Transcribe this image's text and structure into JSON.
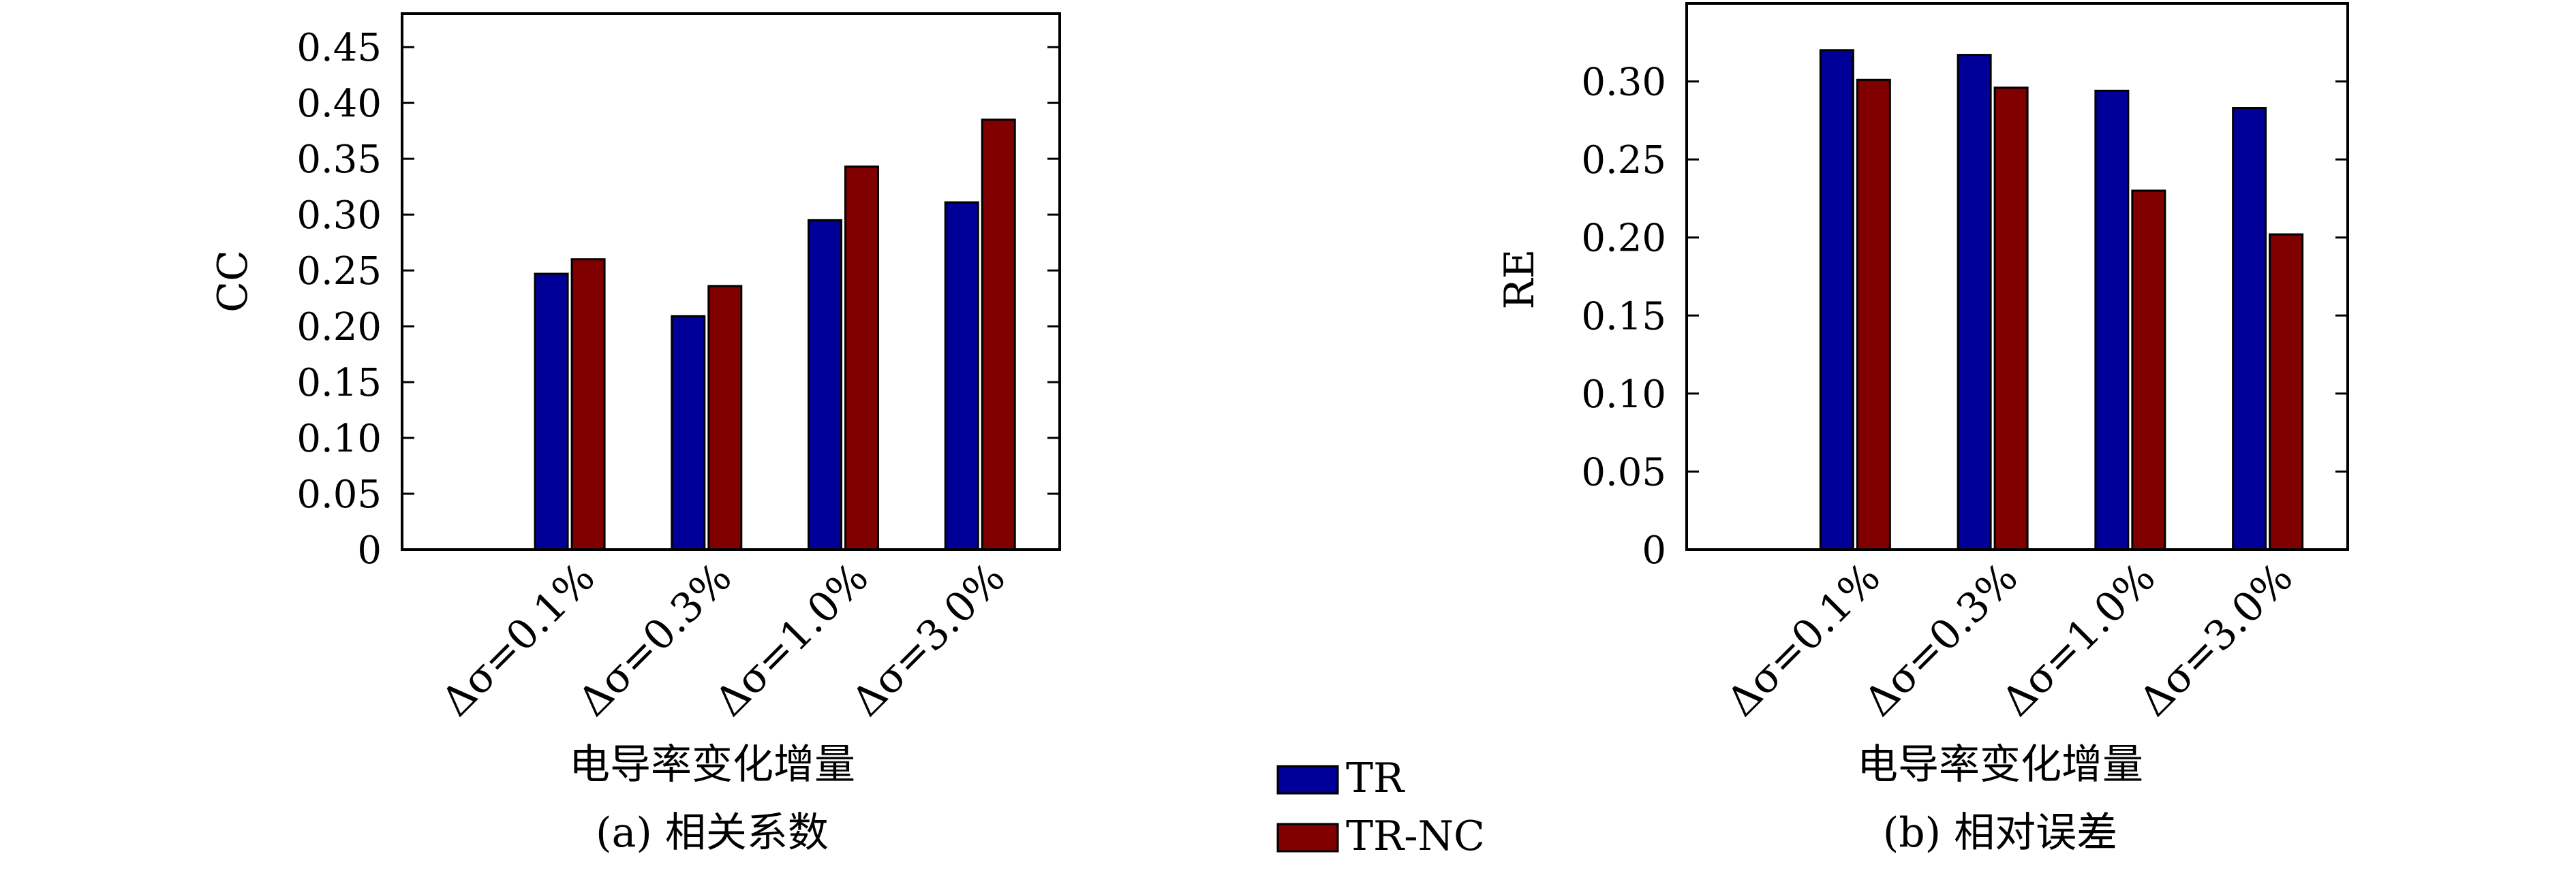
{
  "chart_data": [
    {
      "type": "bar",
      "categories": [
        "Δσ=0.1%",
        "Δσ=0.3%",
        "Δσ=1.0%",
        "Δσ=3.0%"
      ],
      "series": [
        {
          "name": "TR",
          "values": [
            0.247,
            0.209,
            0.295,
            0.311
          ]
        },
        {
          "name": "TR-NC",
          "values": [
            0.26,
            0.236,
            0.343,
            0.385
          ]
        }
      ],
      "ylabel": "CC",
      "xlabel": "电导率变化增量",
      "caption": "(a) 相关系数",
      "ylim": [
        0,
        0.48
      ],
      "yticks": [
        "0",
        "0.05",
        "0.10",
        "0.15",
        "0.20",
        "0.25",
        "0.30",
        "0.35",
        "0.40",
        "0.45"
      ],
      "grid": false
    },
    {
      "type": "bar",
      "categories": [
        "Δσ=0.1%",
        "Δσ=0.3%",
        "Δσ=1.0%",
        "Δσ=3.0%"
      ],
      "series": [
        {
          "name": "TR",
          "values": [
            0.32,
            0.317,
            0.294,
            0.283
          ]
        },
        {
          "name": "TR-NC",
          "values": [
            0.301,
            0.296,
            0.23,
            0.202
          ]
        }
      ],
      "ylabel": "RE",
      "xlabel": "电导率变化增量",
      "caption": "(b) 相对误差",
      "ylim": [
        0,
        0.35
      ],
      "yticks": [
        "0",
        "0.05",
        "0.10",
        "0.15",
        "0.20",
        "0.25",
        "0.30"
      ],
      "grid": false
    }
  ],
  "legend": {
    "position": "bottom-center",
    "items": [
      {
        "label": "TR",
        "color": "#000099"
      },
      {
        "label": "TR-NC",
        "color": "#800000"
      }
    ]
  },
  "colors": {
    "TR": "#000099",
    "TR-NC": "#800000"
  }
}
